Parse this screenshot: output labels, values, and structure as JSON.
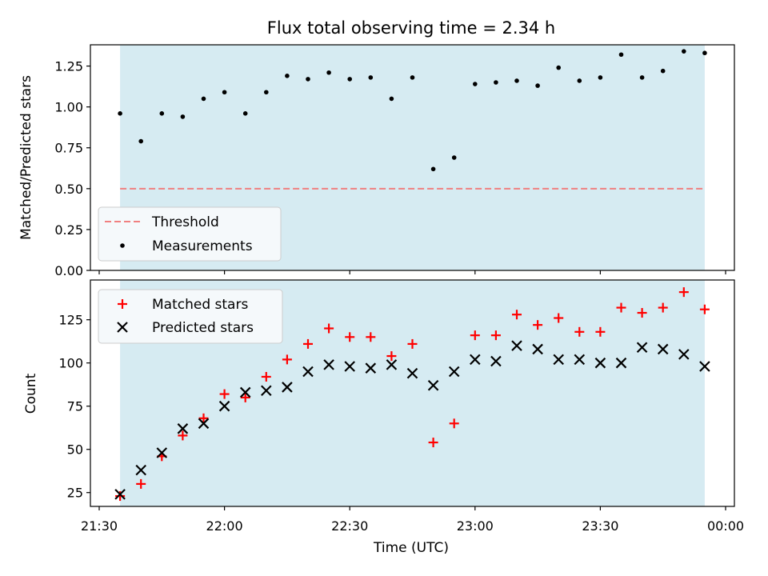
{
  "title": "Flux total observing time = 2.34 h",
  "colors": {
    "span_fill": "#add8e6",
    "threshold": "#f08080",
    "measurements": "#000000",
    "matched": "#ff0000",
    "predicted": "#000000"
  },
  "chart_data": [
    {
      "type": "scatter",
      "ylabel": "Matched/Predicted stars",
      "ylim": [
        0,
        1.38
      ],
      "yticks": [
        "0.00",
        "0.25",
        "0.50",
        "0.75",
        "1.00",
        "1.25"
      ],
      "ytick_values": [
        0,
        0.25,
        0.5,
        0.75,
        1.0,
        1.25
      ],
      "shaded_span": [
        "21:35",
        "23:55"
      ],
      "legend": {
        "placement": "lower-left",
        "entries": [
          "Threshold",
          "Measurements"
        ]
      },
      "threshold": {
        "name": "Threshold",
        "y": 0.5,
        "x": [
          "21:35",
          "23:55"
        ]
      },
      "measurements": {
        "name": "Measurements",
        "x": [
          "21:35",
          "21:40",
          "21:45",
          "21:50",
          "21:55",
          "22:00",
          "22:05",
          "22:10",
          "22:15",
          "22:20",
          "22:25",
          "22:30",
          "22:35",
          "22:40",
          "22:45",
          "22:50",
          "22:55",
          "23:00",
          "23:05",
          "23:10",
          "23:15",
          "23:20",
          "23:25",
          "23:30",
          "23:35",
          "23:40",
          "23:45",
          "23:50",
          "23:55"
        ],
        "y": [
          0.96,
          0.79,
          0.96,
          0.94,
          1.05,
          1.09,
          0.96,
          1.09,
          1.19,
          1.17,
          1.21,
          1.17,
          1.18,
          1.05,
          1.18,
          0.62,
          0.69,
          1.14,
          1.15,
          1.16,
          1.13,
          1.24,
          1.16,
          1.18,
          1.32,
          1.18,
          1.22,
          1.34,
          1.33
        ]
      }
    },
    {
      "type": "scatter",
      "xlabel": "Time (UTC)",
      "ylabel": "Count",
      "ylim": [
        17,
        148
      ],
      "yticks": [
        "25",
        "50",
        "75",
        "100",
        "125"
      ],
      "ytick_values": [
        25,
        50,
        75,
        100,
        125
      ],
      "xlim": [
        "21:30",
        "00:00"
      ],
      "xticks": [
        "21:30",
        "22:00",
        "22:30",
        "23:00",
        "23:30",
        "00:00"
      ],
      "shaded_span": [
        "21:35",
        "23:55"
      ],
      "legend": {
        "placement": "top-left",
        "entries": [
          "Matched stars",
          "Predicted stars"
        ]
      },
      "series": [
        {
          "name": "Matched stars",
          "marker": "plus",
          "x": [
            "21:35",
            "21:40",
            "21:45",
            "21:50",
            "21:55",
            "22:00",
            "22:05",
            "22:10",
            "22:15",
            "22:20",
            "22:25",
            "22:30",
            "22:35",
            "22:40",
            "22:45",
            "22:50",
            "22:55",
            "23:00",
            "23:05",
            "23:10",
            "23:15",
            "23:20",
            "23:25",
            "23:30",
            "23:35",
            "23:40",
            "23:45",
            "23:50",
            "23:55"
          ],
          "y": [
            23,
            30,
            46,
            58,
            68,
            82,
            80,
            92,
            102,
            111,
            120,
            115,
            115,
            104,
            111,
            54,
            65,
            116,
            116,
            128,
            122,
            126,
            118,
            118,
            132,
            129,
            132,
            141,
            131
          ]
        },
        {
          "name": "Predicted stars",
          "marker": "x",
          "x": [
            "21:35",
            "21:40",
            "21:45",
            "21:50",
            "21:55",
            "22:00",
            "22:05",
            "22:10",
            "22:15",
            "22:20",
            "22:25",
            "22:30",
            "22:35",
            "22:40",
            "22:45",
            "22:50",
            "22:55",
            "23:00",
            "23:05",
            "23:10",
            "23:15",
            "23:20",
            "23:25",
            "23:30",
            "23:35",
            "23:40",
            "23:45",
            "23:50",
            "23:55"
          ],
          "y": [
            24,
            38,
            48,
            62,
            65,
            75,
            83,
            84,
            86,
            95,
            99,
            98,
            97,
            99,
            94,
            87,
            95,
            102,
            101,
            110,
            108,
            102,
            102,
            100,
            100,
            109,
            108,
            105,
            98
          ]
        }
      ]
    }
  ]
}
